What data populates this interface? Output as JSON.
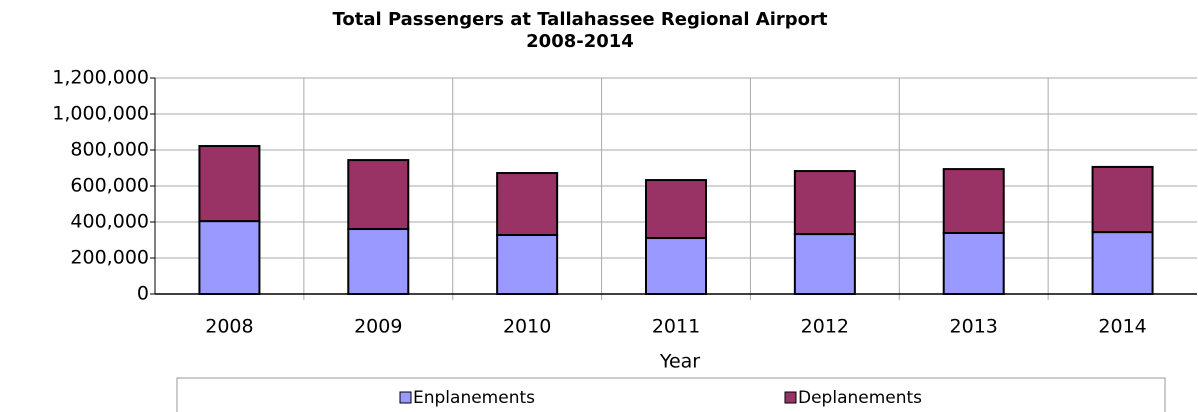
{
  "chart_data": {
    "type": "stacked_bar",
    "title": "Total Passengers at Tallahassee Regional Airport",
    "subtitle": "2008-2014",
    "x_label": "Year",
    "categories": [
      "2008",
      "2009",
      "2010",
      "2011",
      "2012",
      "2013",
      "2014"
    ],
    "series": [
      {
        "name": "Enplanements",
        "color": "#9999ff",
        "values": [
          405000,
          361000,
          328000,
          311000,
          333000,
          339000,
          344000
        ]
      },
      {
        "name": "Deplanements",
        "color": "#993366",
        "values": [
          417000,
          383000,
          344000,
          322000,
          350000,
          355000,
          362000
        ]
      }
    ],
    "ylim": [
      0,
      1200000
    ],
    "yticks": [
      0,
      {
        "value": 200000,
        "label": "200,000"
      },
      {
        "value": 400000,
        "label": "400,000"
      },
      {
        "value": 600000,
        "label": "600,000"
      },
      {
        "value": 800000,
        "label": "800,000"
      },
      {
        "value": 1000000,
        "label": "1,000,000"
      },
      {
        "value": 1200000,
        "label": "1,200,000"
      }
    ],
    "grid": true,
    "legend": "bottom"
  }
}
